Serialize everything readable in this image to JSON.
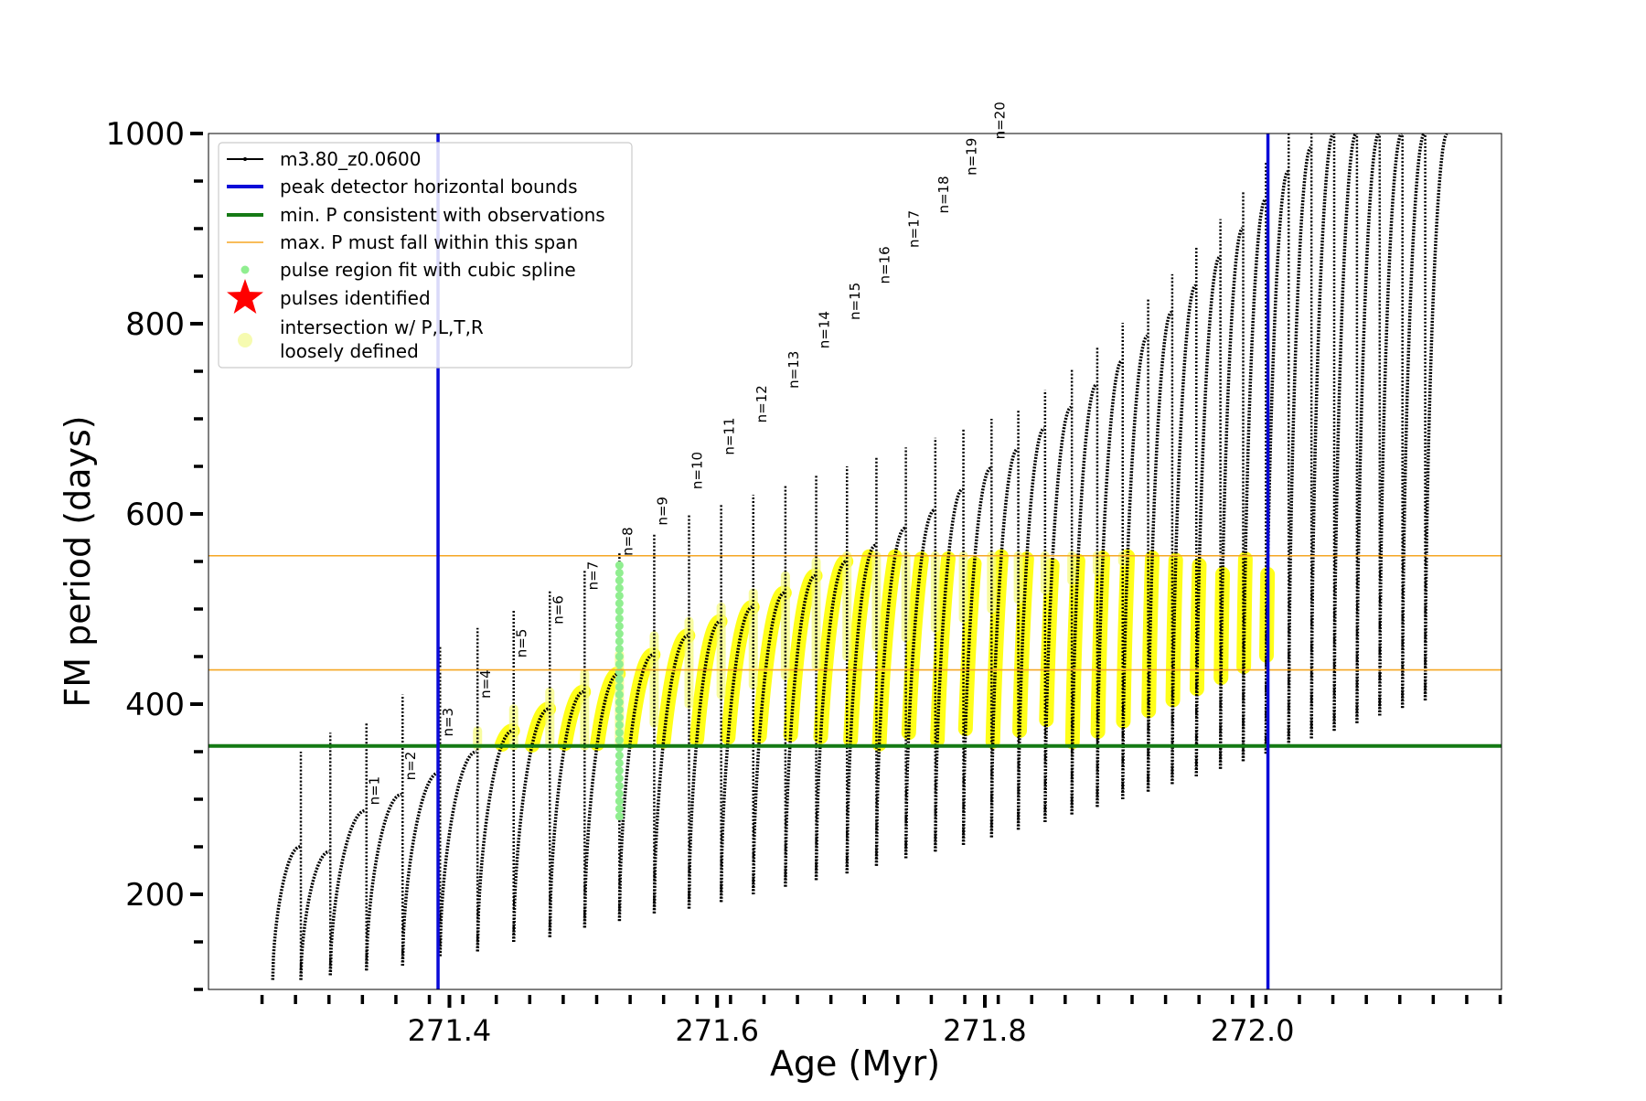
{
  "chart_data": {
    "type": "line",
    "title": "",
    "xlabel": "Age (Myr)",
    "ylabel": "FM period (days)",
    "xlim": [
      271.22,
      272.186
    ],
    "ylim": [
      100,
      1000
    ],
    "x_ticks": [
      271.4,
      271.6,
      271.8,
      272.0
    ],
    "x_tick_labels": [
      "271.4",
      "271.6",
      "271.8",
      "272.0"
    ],
    "y_ticks": [
      200,
      400,
      600,
      800,
      1000
    ],
    "y_tick_labels": [
      "200",
      "400",
      "600",
      "800",
      "1000"
    ],
    "grid": false,
    "legend_position": "upper-left",
    "legend": [
      {
        "label": "m3.80_z0.0600",
        "kind": "line-dot",
        "color": "#000000"
      },
      {
        "label": "peak detector horizontal bounds",
        "kind": "line",
        "color": "#0a0ad8"
      },
      {
        "label": "min. P consistent with observations",
        "kind": "line",
        "color": "#157a15"
      },
      {
        "label": "max. P must fall within this span",
        "kind": "thin-line",
        "color": "#f5a623"
      },
      {
        "label": "pulse region fit with cubic spline",
        "kind": "dot",
        "color": "#90ee90"
      },
      {
        "label": "pulses identified",
        "kind": "star",
        "color": "#ff0000"
      },
      {
        "label": "intersection w/ P,L,T,R",
        "label2": "loosely defined",
        "kind": "circle",
        "color": "#f6fbb0"
      }
    ],
    "vlines": [
      {
        "x": 271.3915,
        "color": "#0a0ad8"
      },
      {
        "x": 272.0115,
        "color": "#0a0ad8"
      }
    ],
    "hlines": [
      {
        "y": 356,
        "color": "#157a15",
        "role": "min"
      },
      {
        "y": 436,
        "color": "#f5a623",
        "role": "max-low"
      },
      {
        "y": 556,
        "color": "#f5a623",
        "role": "max-high"
      }
    ],
    "pulse_series": {
      "name": "m3.80_z0.0600",
      "color": "#000000",
      "pulses": [
        {
          "start": 271.268,
          "end": 271.289,
          "base": 110,
          "peak": 250,
          "top": 140
        },
        {
          "start": 271.289,
          "end": 271.311,
          "base": 110,
          "peak": 245,
          "top": 150
        },
        {
          "start": 271.311,
          "end": 271.338,
          "base": 115,
          "peak": 288,
          "top": 170
        },
        {
          "start": 271.338,
          "end": 271.365,
          "base": 120,
          "peak": 305,
          "top": 180
        },
        {
          "start": 271.365,
          "end": 271.393,
          "base": 125,
          "peak": 328,
          "top": 210
        },
        {
          "start": 271.393,
          "end": 271.421,
          "base": 135,
          "peak": 350,
          "top": 260
        },
        {
          "start": 271.421,
          "end": 271.448,
          "base": 140,
          "peak": 372,
          "top": 280
        },
        {
          "start": 271.448,
          "end": 271.475,
          "base": 150,
          "peak": 395,
          "top": 300
        },
        {
          "start": 271.475,
          "end": 271.501,
          "base": 155,
          "peak": 413,
          "top": 320
        },
        {
          "start": 271.501,
          "end": 271.527,
          "base": 165,
          "peak": 432,
          "top": 340
        },
        {
          "start": 271.527,
          "end": 271.553,
          "base": 172,
          "peak": 452,
          "top": 360
        },
        {
          "start": 271.553,
          "end": 271.579,
          "base": 180,
          "peak": 472,
          "top": 380
        },
        {
          "start": 271.579,
          "end": 271.603,
          "base": 185,
          "peak": 487,
          "top": 400
        },
        {
          "start": 271.603,
          "end": 271.627,
          "base": 192,
          "peak": 502,
          "top": 410
        },
        {
          "start": 271.627,
          "end": 271.651,
          "base": 200,
          "peak": 517,
          "top": 420
        },
        {
          "start": 271.651,
          "end": 271.674,
          "base": 208,
          "peak": 535,
          "top": 430
        },
        {
          "start": 271.674,
          "end": 271.697,
          "base": 215,
          "peak": 550,
          "top": 440
        },
        {
          "start": 271.697,
          "end": 271.719,
          "base": 222,
          "peak": 567,
          "top": 450
        },
        {
          "start": 271.719,
          "end": 271.741,
          "base": 230,
          "peak": 585,
          "top": 460
        },
        {
          "start": 271.741,
          "end": 271.763,
          "base": 238,
          "peak": 604,
          "top": 470
        },
        {
          "start": 271.763,
          "end": 271.784,
          "base": 245,
          "peak": 626,
          "top": 480
        },
        {
          "start": 271.784,
          "end": 271.805,
          "base": 252,
          "peak": 648,
          "top": 490
        },
        {
          "start": 271.805,
          "end": 271.825,
          "base": 260,
          "peak": 668,
          "top": 500
        },
        {
          "start": 271.825,
          "end": 271.845,
          "base": 268,
          "peak": 690,
          "top": 510
        },
        {
          "start": 271.845,
          "end": 271.865,
          "base": 276,
          "peak": 712,
          "top": 520
        },
        {
          "start": 271.865,
          "end": 271.884,
          "base": 284,
          "peak": 736,
          "top": 530
        },
        {
          "start": 271.884,
          "end": 271.903,
          "base": 292,
          "peak": 761,
          "top": 540
        },
        {
          "start": 271.903,
          "end": 271.922,
          "base": 300,
          "peak": 787,
          "top": 550
        },
        {
          "start": 271.922,
          "end": 271.94,
          "base": 308,
          "peak": 812,
          "top": 560
        },
        {
          "start": 271.94,
          "end": 271.958,
          "base": 316,
          "peak": 840,
          "top": 570
        },
        {
          "start": 271.958,
          "end": 271.976,
          "base": 324,
          "peak": 870,
          "top": 580
        },
        {
          "start": 271.976,
          "end": 271.993,
          "base": 332,
          "peak": 900,
          "top": 590
        },
        {
          "start": 271.993,
          "end": 272.01,
          "base": 340,
          "peak": 930,
          "top": 600
        },
        {
          "start": 272.01,
          "end": 272.027,
          "base": 348,
          "peak": 960,
          "top": 610
        },
        {
          "start": 272.027,
          "end": 272.044,
          "base": 356,
          "peak": 985,
          "top": 620
        },
        {
          "start": 272.044,
          "end": 272.061,
          "base": 364,
          "peak": 1000,
          "top": 630
        },
        {
          "start": 272.061,
          "end": 272.078,
          "base": 372,
          "peak": 1000,
          "top": 640
        },
        {
          "start": 272.078,
          "end": 272.095,
          "base": 380,
          "peak": 1000,
          "top": 650
        },
        {
          "start": 272.095,
          "end": 272.112,
          "base": 388,
          "peak": 1000,
          "top": 660
        },
        {
          "start": 272.112,
          "end": 272.129,
          "base": 396,
          "peak": 1000,
          "top": 670
        },
        {
          "start": 272.129,
          "end": 272.146,
          "base": 404,
          "peak": 1000,
          "top": 680
        }
      ]
    },
    "pulse_labels": [
      {
        "label": "n=1",
        "x": 271.338,
        "y": 290
      },
      {
        "label": "n=2",
        "x": 271.365,
        "y": 316
      },
      {
        "label": "n=3",
        "x": 271.393,
        "y": 362
      },
      {
        "label": "n=4",
        "x": 271.421,
        "y": 402
      },
      {
        "label": "n=5",
        "x": 271.448,
        "y": 445
      },
      {
        "label": "n=6",
        "x": 271.475,
        "y": 480
      },
      {
        "label": "n=7",
        "x": 271.501,
        "y": 516
      },
      {
        "label": "n=8",
        "x": 271.527,
        "y": 552
      },
      {
        "label": "n=9",
        "x": 271.553,
        "y": 584
      },
      {
        "label": "n=10",
        "x": 271.579,
        "y": 622
      },
      {
        "label": "n=11",
        "x": 271.603,
        "y": 658
      },
      {
        "label": "n=12",
        "x": 271.627,
        "y": 692
      },
      {
        "label": "n=13",
        "x": 271.651,
        "y": 728
      },
      {
        "label": "n=14",
        "x": 271.674,
        "y": 770
      },
      {
        "label": "n=15",
        "x": 271.697,
        "y": 800
      },
      {
        "label": "n=16",
        "x": 271.719,
        "y": 838
      },
      {
        "label": "n=17",
        "x": 271.741,
        "y": 876
      },
      {
        "label": "n=18",
        "x": 271.763,
        "y": 912
      },
      {
        "label": "n=19",
        "x": 271.784,
        "y": 952
      },
      {
        "label": "n=20",
        "x": 271.805,
        "y": 990
      }
    ],
    "spline_regions": [
      {
        "x": 271.527,
        "y_from": 282,
        "y_to": 552
      }
    ],
    "highlight": {
      "color": "#ffff00",
      "y_low": 356,
      "y_high": 556,
      "x_from": 271.3915,
      "x_to": 272.0115
    }
  }
}
